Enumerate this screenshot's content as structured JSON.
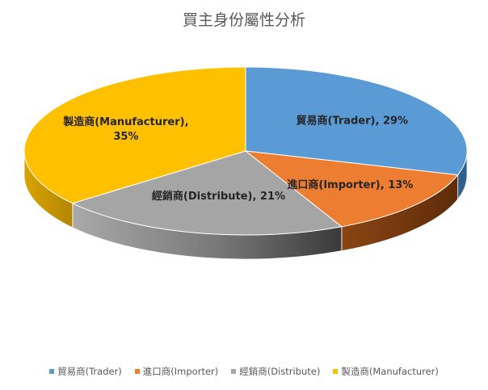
{
  "chart_data": {
    "type": "pie",
    "title": "買主身份屬性分析",
    "categories": [
      "貿易商(Trader)",
      "進口商(Importer)",
      "經銷商(Distribute)",
      "製造商(Manufacturer)"
    ],
    "values": [
      29,
      13,
      21,
      35
    ],
    "unit": "%",
    "colors": [
      "#5B9BD5",
      "#ED7D31",
      "#A5A5A5",
      "#FFC000"
    ],
    "data_labels": [
      "貿易商(Trader), 29%",
      "進口商(Importer), 13%",
      "經銷商(Distribute), 21%",
      [
        "製造商(Manufacturer),",
        "35%"
      ]
    ],
    "legend_position": "bottom",
    "style": "3d"
  }
}
